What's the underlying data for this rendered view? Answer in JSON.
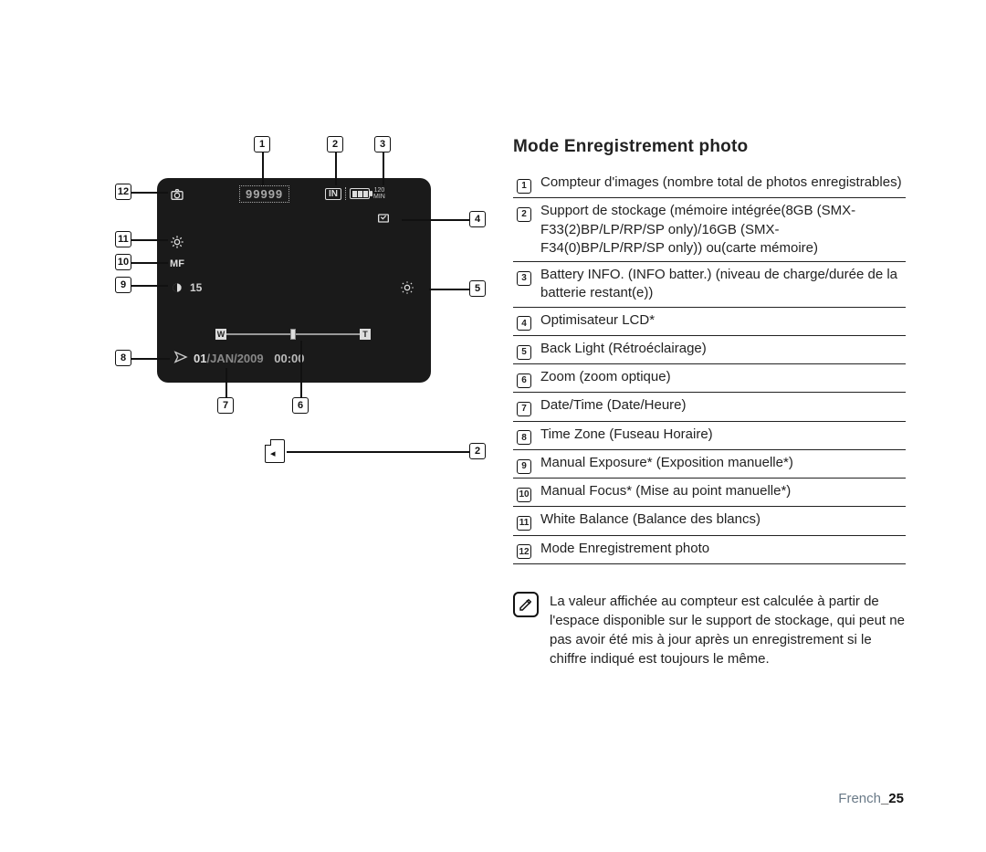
{
  "title": "Mode Enregistrement photo",
  "lcd": {
    "counter": "99999",
    "storage_label": "IN",
    "battery_min_top": "120",
    "battery_min_bot": "MIN",
    "exposure_value": "15",
    "zoom_w": "W",
    "zoom_t": "T",
    "date_day": "01",
    "date_month": "/JAN/",
    "date_year": "2009",
    "time": "00:00"
  },
  "callouts": [
    {
      "n": "1"
    },
    {
      "n": "2"
    },
    {
      "n": "3"
    },
    {
      "n": "4"
    },
    {
      "n": "5"
    },
    {
      "n": "6"
    },
    {
      "n": "7"
    },
    {
      "n": "8"
    },
    {
      "n": "9"
    },
    {
      "n": "10"
    },
    {
      "n": "11"
    },
    {
      "n": "12"
    }
  ],
  "legend": [
    {
      "n": "1",
      "text": "Compteur d'images (nombre total de photos enregistrables)"
    },
    {
      "n": "2",
      "text": "Support de stockage (mémoire intégrée(8GB (SMX-F33(2)BP/LP/RP/SP only)/16GB (SMX-F34(0)BP/LP/RP/SP only)) ou(carte mémoire)"
    },
    {
      "n": "3",
      "text": "Battery INFO. (INFO batter.) (niveau de charge/durée de la batterie restant(e))"
    },
    {
      "n": "4",
      "text": "Optimisateur LCD*"
    },
    {
      "n": "5",
      "text": "Back Light (Rétroéclairage)"
    },
    {
      "n": "6",
      "text": "Zoom (zoom optique)"
    },
    {
      "n": "7",
      "text": "Date/Time (Date/Heure)"
    },
    {
      "n": "8",
      "text": "Time Zone (Fuseau Horaire)"
    },
    {
      "n": "9",
      "text": "Manual Exposure* (Exposition manuelle*)"
    },
    {
      "n": "10",
      "text": "Manual Focus* (Mise au point manuelle*)"
    },
    {
      "n": "11",
      "text": "White Balance (Balance des blancs)"
    },
    {
      "n": "12",
      "text": "Mode Enregistrement photo"
    }
  ],
  "note": "La valeur affichée au compteur est calculée à partir de l'espace disponible sur le support de stockage, qui peut ne pas avoir été mis à jour après un enregistrement si le chiffre indiqué est toujours le même.",
  "footer_lang": "French",
  "footer_page": "_25",
  "colors": {
    "lcd_bg": "#1a1a1a",
    "text": "#222222",
    "footer": "#6a7a88"
  }
}
